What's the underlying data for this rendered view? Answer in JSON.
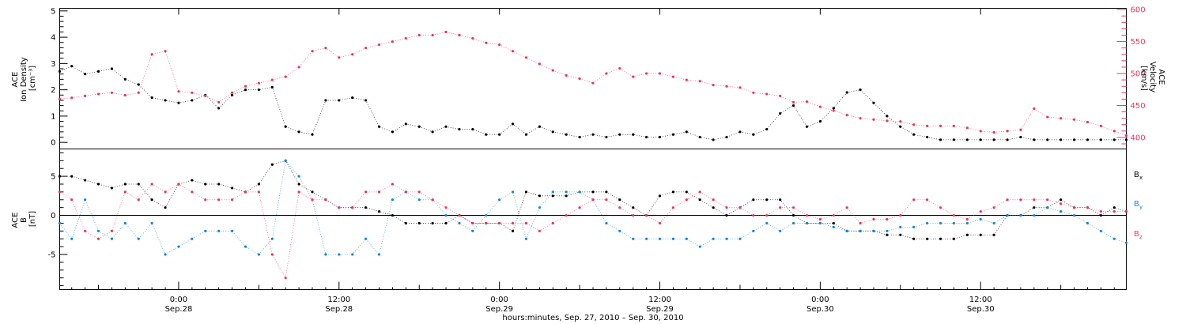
{
  "colors": {
    "background": "#ffffff",
    "density": "#000000",
    "velocity": "#e8375f",
    "bx": "#000000",
    "by": "#1a86d6",
    "bz": "#e8375f",
    "axis": "#000000"
  },
  "xaxis": {
    "label": "hours:minutes, Sep. 27, 2010 – Sep. 30, 2010",
    "ticks": [
      {
        "time": "0:00",
        "date": "Sep.28",
        "hours": 0
      },
      {
        "time": "12:00",
        "date": "Sep.28",
        "hours": 12
      },
      {
        "time": "0:00",
        "date": "Sep.29",
        "hours": 24
      },
      {
        "time": "12:00",
        "date": "Sep.29",
        "hours": 36
      },
      {
        "time": "0:00",
        "date": "Sep.30",
        "hours": 48
      },
      {
        "time": "12:00",
        "date": "Sep.30",
        "hours": 60
      }
    ]
  },
  "chart_data": [
    {
      "type": "scatter",
      "panel": "top",
      "xlim_hours": [
        -8.9,
        70.9
      ],
      "left_axis": {
        "label_line1": "ACE",
        "label_line2": "Ion Density",
        "units": "[cm⁻³]",
        "ylim": [
          -0.25,
          5.1
        ],
        "ticks": [
          0,
          1,
          2,
          3,
          4,
          5
        ]
      },
      "right_axis": {
        "label_line1": "ACE",
        "label_line2": "Velocity",
        "units": "[km/s]",
        "ylim": [
          382,
          602
        ],
        "ticks": [
          400,
          450,
          500,
          550,
          600
        ]
      },
      "series": [
        {
          "key": "density",
          "axis": "left",
          "x": [
            -8.9,
            -8,
            -7,
            -6,
            -5,
            -4,
            -3,
            -2,
            -1,
            0,
            1,
            2,
            3,
            4,
            5,
            6,
            7,
            8,
            9,
            10,
            11,
            12,
            13,
            14,
            15,
            16,
            17,
            18,
            19,
            20,
            21,
            22,
            23,
            24,
            25,
            26,
            27,
            28,
            29,
            30,
            31,
            32,
            33,
            34,
            35,
            36,
            37,
            38,
            39,
            40,
            41,
            42,
            43,
            44,
            45,
            46,
            47,
            48,
            49,
            50,
            51,
            52,
            53,
            54,
            55,
            56,
            57,
            58,
            59,
            60,
            61,
            62,
            63,
            64,
            65,
            66,
            67,
            68,
            69,
            70,
            70.9
          ],
          "values": [
            2.7,
            2.9,
            2.6,
            2.7,
            2.8,
            2.4,
            2.2,
            1.7,
            1.6,
            1.5,
            1.6,
            1.8,
            1.3,
            1.8,
            2.0,
            2.0,
            2.1,
            0.6,
            0.4,
            0.3,
            1.6,
            1.6,
            1.7,
            1.6,
            0.6,
            0.4,
            0.7,
            0.6,
            0.4,
            0.6,
            0.5,
            0.5,
            0.3,
            0.3,
            0.7,
            0.3,
            0.6,
            0.4,
            0.3,
            0.2,
            0.3,
            0.2,
            0.3,
            0.3,
            0.2,
            0.2,
            0.3,
            0.4,
            0.2,
            0.1,
            0.2,
            0.4,
            0.3,
            0.5,
            1.1,
            1.4,
            0.6,
            0.8,
            1.3,
            1.9,
            2.0,
            1.5,
            1.0,
            0.6,
            0.3,
            0.2,
            0.1,
            0.1,
            0.1,
            0.1,
            0.1,
            0.1,
            0.2,
            0.1,
            0.1,
            0.1,
            0.1,
            0.1,
            0.1,
            0.1,
            0.1
          ]
        },
        {
          "key": "velocity",
          "axis": "right",
          "x": [
            -8.9,
            -8,
            -7,
            -6,
            -5,
            -4,
            -3,
            -2,
            -1,
            0,
            1,
            2,
            3,
            4,
            5,
            6,
            7,
            8,
            9,
            10,
            11,
            12,
            13,
            14,
            15,
            16,
            17,
            18,
            19,
            20,
            21,
            22,
            23,
            24,
            25,
            26,
            27,
            28,
            29,
            30,
            31,
            32,
            33,
            34,
            35,
            36,
            37,
            38,
            39,
            40,
            41,
            42,
            43,
            44,
            45,
            46,
            47,
            48,
            49,
            50,
            51,
            52,
            53,
            54,
            55,
            56,
            57,
            58,
            59,
            60,
            61,
            62,
            63,
            64,
            65,
            66,
            67,
            68,
            69,
            70,
            70.9
          ],
          "values": [
            460,
            462,
            465,
            468,
            470,
            466,
            470,
            530,
            535,
            472,
            470,
            465,
            455,
            470,
            480,
            485,
            490,
            495,
            510,
            535,
            540,
            525,
            530,
            540,
            545,
            550,
            555,
            560,
            560,
            565,
            560,
            555,
            548,
            545,
            535,
            525,
            515,
            505,
            497,
            492,
            485,
            500,
            508,
            495,
            500,
            500,
            495,
            490,
            488,
            482,
            480,
            478,
            470,
            468,
            465,
            455,
            456,
            448,
            442,
            435,
            430,
            428,
            426,
            425,
            420,
            418,
            418,
            418,
            415,
            410,
            408,
            410,
            412,
            445,
            432,
            430,
            428,
            424,
            418,
            410,
            403
          ]
        }
      ]
    },
    {
      "type": "scatter",
      "panel": "bottom",
      "xlim_hours": [
        -8.9,
        70.9
      ],
      "left_axis": {
        "label_line1": "ACE",
        "label_line2": "B",
        "units": "[nT]",
        "ylim": [
          -9.5,
          8.5
        ],
        "ticks": [
          -5,
          0,
          5
        ]
      },
      "legend": [
        {
          "key": "bx",
          "label": "B",
          "sub": "x"
        },
        {
          "key": "by",
          "label": "B",
          "sub": "y"
        },
        {
          "key": "bz",
          "label": "B",
          "sub": "z"
        }
      ],
      "series": [
        {
          "key": "bx",
          "x": [
            -8.9,
            -8,
            -7,
            -6,
            -5,
            -4,
            -3,
            -2,
            -1,
            0,
            1,
            2,
            3,
            4,
            5,
            6,
            7,
            8,
            9,
            10,
            11,
            12,
            13,
            14,
            15,
            16,
            17,
            18,
            19,
            20,
            21,
            22,
            23,
            24,
            25,
            26,
            27,
            28,
            29,
            30,
            31,
            32,
            33,
            34,
            35,
            36,
            37,
            38,
            39,
            40,
            41,
            42,
            43,
            44,
            45,
            46,
            47,
            48,
            49,
            50,
            51,
            52,
            53,
            54,
            55,
            56,
            57,
            58,
            59,
            60,
            61,
            62,
            63,
            64,
            65,
            66,
            67,
            68,
            69,
            70,
            70.9
          ],
          "values": [
            5,
            5,
            4.5,
            4,
            3.5,
            4,
            4,
            2,
            1,
            4,
            4.5,
            4,
            4,
            3.5,
            3,
            4,
            6.5,
            7,
            4,
            3,
            2,
            1,
            1,
            1,
            0.5,
            0,
            -1,
            -1,
            -1,
            -1,
            0,
            -1,
            -1,
            -1,
            -2,
            3,
            2.5,
            2.5,
            2.5,
            3,
            3,
            3,
            2,
            1,
            0,
            2.5,
            3,
            3,
            2,
            1,
            0,
            1,
            2,
            2,
            2,
            0,
            -1,
            -1,
            -1,
            -2,
            -2,
            -2,
            -2.5,
            -2.5,
            -3,
            -3,
            -3,
            -3,
            -2.5,
            -2.5,
            -2.5,
            0,
            0,
            1,
            1,
            2,
            1,
            1,
            0,
            1,
            0.5
          ]
        },
        {
          "key": "by",
          "x": [
            -8.9,
            -8,
            -7,
            -6,
            -5,
            -4,
            -3,
            -2,
            -1,
            0,
            1,
            2,
            3,
            4,
            5,
            6,
            7,
            8,
            9,
            10,
            11,
            12,
            13,
            14,
            15,
            16,
            17,
            18,
            19,
            20,
            21,
            22,
            23,
            24,
            25,
            26,
            27,
            28,
            29,
            30,
            31,
            32,
            33,
            34,
            35,
            36,
            37,
            38,
            39,
            40,
            41,
            42,
            43,
            44,
            45,
            46,
            47,
            48,
            49,
            50,
            51,
            52,
            53,
            54,
            55,
            56,
            57,
            58,
            59,
            60,
            61,
            62,
            63,
            64,
            65,
            66,
            67,
            68,
            69,
            70,
            70.9
          ],
          "values": [
            -1,
            -3,
            2,
            -2,
            -3,
            -1,
            -3,
            -1,
            -5,
            -4,
            -3,
            -2,
            -2,
            -2,
            -4,
            -5,
            -3,
            7,
            5,
            2,
            -5,
            -5,
            -5,
            -3,
            -5,
            2,
            3,
            2,
            2,
            0,
            -1,
            -2,
            0,
            2,
            3,
            -3,
            1,
            3,
            3,
            3,
            2,
            -1,
            -2,
            -3,
            -3,
            -3,
            -3,
            -3,
            -4,
            -3,
            -3,
            -3,
            -2,
            -1,
            -2,
            -1,
            -1,
            -1,
            -1.5,
            -2,
            -2,
            -2,
            -2,
            -1.5,
            -1.5,
            -1,
            -1,
            -1,
            -1,
            -0.5,
            -1,
            0,
            0,
            0,
            1,
            0.5,
            0,
            -1,
            -2,
            -3,
            -3.5
          ]
        },
        {
          "key": "bz",
          "x": [
            -8.9,
            -8,
            -7,
            -6,
            -5,
            -4,
            -3,
            -2,
            -1,
            0,
            1,
            2,
            3,
            4,
            5,
            6,
            7,
            8,
            9,
            10,
            11,
            12,
            13,
            14,
            15,
            16,
            17,
            18,
            19,
            20,
            21,
            22,
            23,
            24,
            25,
            26,
            27,
            28,
            29,
            30,
            31,
            32,
            33,
            34,
            35,
            36,
            37,
            38,
            39,
            40,
            41,
            42,
            43,
            44,
            45,
            46,
            47,
            48,
            49,
            50,
            51,
            52,
            53,
            54,
            55,
            56,
            57,
            58,
            59,
            60,
            61,
            62,
            63,
            64,
            65,
            66,
            67,
            68,
            69,
            70,
            70.9
          ],
          "values": [
            3,
            2,
            -2,
            -3,
            -2,
            3,
            2,
            4,
            3,
            4,
            3,
            2,
            2,
            2,
            3,
            3,
            -5,
            -8,
            3,
            2,
            2,
            1,
            1,
            3,
            3,
            4,
            3,
            3,
            2,
            1,
            0,
            -1,
            -1,
            -1,
            -1,
            -1,
            -2,
            -1,
            0,
            1,
            2,
            2,
            1,
            0,
            0,
            -1,
            1,
            2,
            3,
            2,
            1,
            1,
            0,
            0,
            1,
            1,
            0,
            -0.5,
            0,
            1,
            -1,
            -0.5,
            -0.5,
            0,
            2,
            2,
            1,
            0,
            -0.5,
            0.5,
            1,
            2,
            2,
            2,
            2,
            1.5,
            1,
            1,
            0.5,
            0.5,
            0.5
          ]
        }
      ]
    }
  ]
}
